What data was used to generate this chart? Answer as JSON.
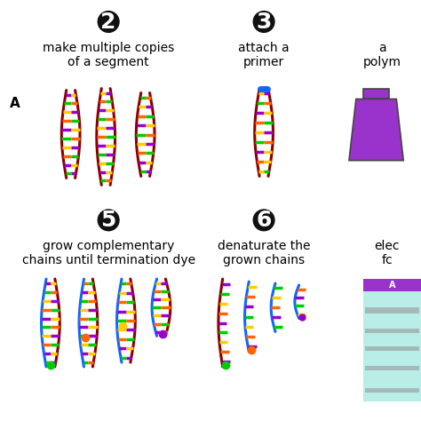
{
  "background_color": "#ffffff",
  "step2_text": "make multiple copies\nof a segment",
  "step3_text": "attach a\nprimer",
  "step4_text": "a\npolym",
  "step5_text": "grow complementary\nchains until termination dye",
  "step6_text": "denaturate the\ngrown chains",
  "step7_text": "elec\nfc",
  "label_A": "A",
  "circle_number_bg": "#111111",
  "circle_number_fg": "#ffffff",
  "font_size_number": 18,
  "font_size_text": 10,
  "dna_dark_red": "#8B0000",
  "dna_blue": "#0055cc",
  "rung_colors": [
    "#9900cc",
    "#00cc00",
    "#ffcc00",
    "#ff6600",
    "#9900cc",
    "#00cc00",
    "#ffcc00",
    "#ff6600",
    "#9900cc",
    "#00cc00",
    "#ffcc00",
    "#ff6600"
  ],
  "primer_color": "#1166ff",
  "beaker_fill": "#9933cc",
  "gel_bg": "#b8ede8",
  "gel_bar_color": "#9933cc",
  "gel_band_color": "#999999",
  "dot_green": "#00cc00",
  "dot_orange": "#ff6600",
  "dot_yellow": "#ffcc00",
  "dot_purple": "#9900cc"
}
